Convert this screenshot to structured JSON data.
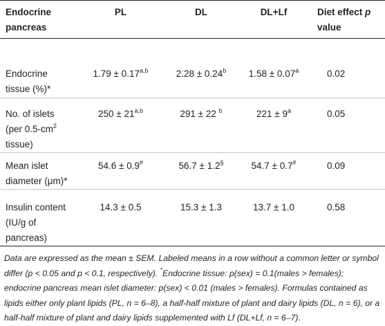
{
  "table": {
    "header": [
      [
        {
          "text": "Endocrine pancreas"
        }
      ],
      [
        {
          "text": "PL"
        }
      ],
      [
        {
          "text": "DL"
        }
      ],
      [
        {
          "text": "DL+Lf"
        }
      ],
      [
        {
          "text": "Diet effect "
        },
        {
          "text": "p",
          "italic": true
        },
        {
          "text": " value"
        }
      ]
    ],
    "rows": [
      {
        "cells": [
          [
            {
              "text": "Endocrine tissue (%)*"
            }
          ],
          [
            {
              "text": "1.79 ± 0.17"
            },
            {
              "text": "a,b",
              "sup": true
            }
          ],
          [
            {
              "text": "2.28 ± 0.24"
            },
            {
              "text": "b",
              "sup": true
            }
          ],
          [
            {
              "text": "1.58 ± 0.07"
            },
            {
              "text": "a",
              "sup": true
            }
          ],
          [
            {
              "text": "0.02"
            }
          ]
        ]
      },
      {
        "cells": [
          [
            {
              "text": "No. of islets (per 0.5-cm"
            },
            {
              "text": "2",
              "sup": true
            },
            {
              "text": " tissue)"
            }
          ],
          [
            {
              "text": "250 ± 21"
            },
            {
              "text": "a,b",
              "sup": true
            }
          ],
          [
            {
              "text": "291 ± 22 "
            },
            {
              "text": "b",
              "sup": true
            }
          ],
          [
            {
              "text": "221 ± 9"
            },
            {
              "text": "a",
              "sup": true
            }
          ],
          [
            {
              "text": "0.05"
            }
          ]
        ]
      },
      {
        "cells": [
          [
            {
              "text": "Mean islet diameter (μm)*"
            }
          ],
          [
            {
              "text": "54.6 ± 0.9"
            },
            {
              "text": "#",
              "sup": true
            }
          ],
          [
            {
              "text": "56.7 ± 1.2"
            },
            {
              "text": "§",
              "sup": true
            }
          ],
          [
            {
              "text": "54.7 ± 0.7"
            },
            {
              "text": "#",
              "sup": true
            }
          ],
          [
            {
              "text": "0.09"
            }
          ]
        ]
      },
      {
        "cells": [
          [
            {
              "text": "Insulin content (IU/g of pancreas)"
            }
          ],
          [
            {
              "text": "14.3 ± 0.5"
            }
          ],
          [
            {
              "text": "15.3 ± 1.3"
            }
          ],
          [
            {
              "text": "13.7 ± 1.0"
            }
          ],
          [
            {
              "text": "0.58"
            }
          ]
        ]
      }
    ],
    "footnote": [
      {
        "text": "Data are expressed as the mean ± SEM. Labeled means in a row without a common letter or symbol differ (p < 0.05 and p < 0.1, respectively). "
      },
      {
        "text": "*",
        "sup": true
      },
      {
        "text": "Endocrine tissue: p(sex) = 0.1(males > females); endocrine pancreas mean islet diameter: p(sex) < 0.01 (males > females). Formulas contained as lipids either only plant lipids (PL, n = 6–8), a half-half mixture of plant and dairy lipids (DL, n = 6), or a half-half mixture of plant and dairy lipids supplemented with Lf (DL+Lf, n = 6–7)."
      }
    ]
  }
}
